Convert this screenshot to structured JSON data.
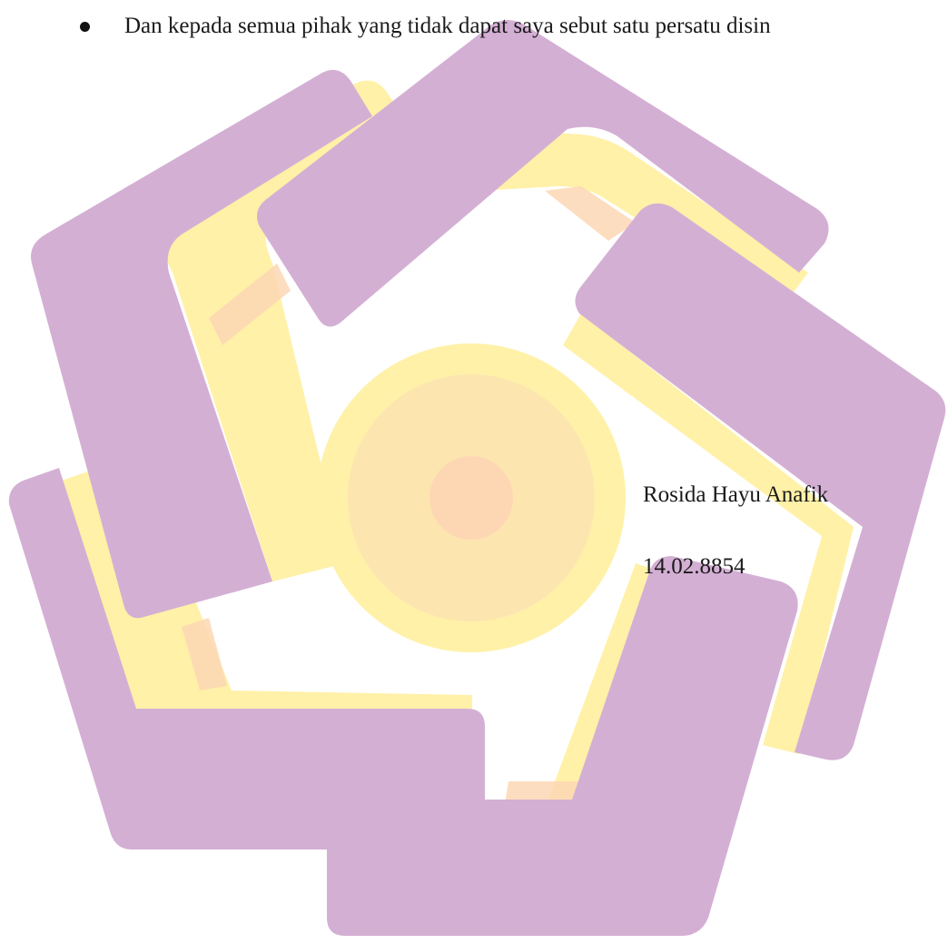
{
  "document": {
    "bullets": [
      "Dan kepada semua pihak yang tidak dapat saya sebut satu persatu disin"
    ],
    "author_name": "Rosida Hayu Anafik",
    "student_id": "14.02.8854"
  },
  "watermark": {
    "type": "university logo",
    "colors": {
      "purple": "#d4afd4",
      "yellow": "#fff1a8",
      "peach": "#fdd7b4"
    }
  }
}
